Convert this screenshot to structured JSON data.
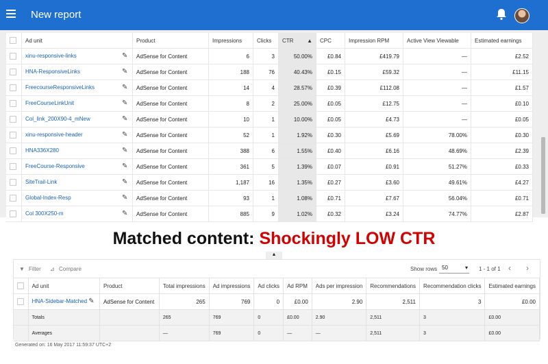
{
  "appbar": {
    "title": "New report"
  },
  "report": {
    "columns": [
      "Ad unit",
      "Product",
      "Impressions",
      "Clicks",
      "CTR",
      "CPC",
      "Impression RPM",
      "Active View Viewable",
      "Estimated earnings"
    ],
    "sort_indicator": "▲",
    "rows": [
      [
        "xinu-responsive-links",
        "AdSense for Content",
        "6",
        "3",
        "50.00%",
        "£0.84",
        "£419.79",
        "—",
        "£2.52"
      ],
      [
        "HNA-ResponsiveLinks",
        "AdSense for Content",
        "188",
        "76",
        "40.43%",
        "£0.15",
        "£59.32",
        "—",
        "£11.15"
      ],
      [
        "FreecourseResponsiveLinks",
        "AdSense for Content",
        "14",
        "4",
        "28.57%",
        "£0.39",
        "£112.08",
        "—",
        "£1.57"
      ],
      [
        "FreeCourseLinkUnit",
        "AdSense for Content",
        "8",
        "2",
        "25.00%",
        "£0.05",
        "£12.75",
        "—",
        "£0.10"
      ],
      [
        "Col_link_200X90-4_mNew",
        "AdSense for Content",
        "10",
        "1",
        "10.00%",
        "£0.05",
        "£4.73",
        "—",
        "£0.05"
      ],
      [
        "xinu-responsive-header",
        "AdSense for Content",
        "52",
        "1",
        "1.92%",
        "£0.30",
        "£5.69",
        "78.00%",
        "£0.30"
      ],
      [
        "HNA336X280",
        "AdSense for Content",
        "388",
        "6",
        "1.55%",
        "£0.40",
        "£6.16",
        "48.69%",
        "£2.39"
      ],
      [
        "FreeCourse-Responsive",
        "AdSense for Content",
        "361",
        "5",
        "1.39%",
        "£0.07",
        "£0.91",
        "51.27%",
        "£0.33"
      ],
      [
        "SiteTrail-Link",
        "AdSense for Content",
        "1,187",
        "16",
        "1.35%",
        "£0.27",
        "£3.60",
        "49.61%",
        "£4.27"
      ],
      [
        "Global-Index-Resp",
        "AdSense for Content",
        "93",
        "1",
        "1.08%",
        "£0.71",
        "£7.67",
        "56.04%",
        "£0.71"
      ],
      [
        "Col 300X250-m",
        "AdSense for Content",
        "885",
        "9",
        "1.02%",
        "£0.32",
        "£3.24",
        "74.77%",
        "£2.87"
      ]
    ]
  },
  "headline": {
    "part1": "Matched content: ",
    "part2": "Shockingly LOW CTR"
  },
  "matched": {
    "toolbar": {
      "filter": "Filter",
      "compare": "Compare",
      "show_rows_label": "Show rows",
      "show_rows_value": "50",
      "range": "1 - 1 of 1"
    },
    "columns": [
      "Ad unit",
      "Product",
      "Total impressions",
      "Ad impressions",
      "Ad clicks",
      "Ad RPM",
      "Ads per impression",
      "Recommendations",
      "Recommendation clicks",
      "Estimated earnings"
    ],
    "row": [
      "HNA-Sidebar-Matched",
      "AdSense for Content",
      "265",
      "769",
      "0",
      "£0.00",
      "2.90",
      "2,511",
      "3",
      "£0.00"
    ],
    "totals": [
      "Totals",
      "",
      "265",
      "769",
      "0",
      "£0.00",
      "2.90",
      "2,511",
      "3",
      "£0.00"
    ],
    "averages": [
      "Averages",
      "",
      "—",
      "769",
      "0",
      "—",
      "—",
      "2,511",
      "3",
      "£0.00"
    ]
  },
  "footer": {
    "generated": "Generated on: 16 May 2017 11:59:37 UTC+2"
  },
  "colors": {
    "appbar": "#1e6fd0",
    "link": "#1a5fb4",
    "headline_red": "#d40000"
  },
  "icons": [
    "menu-icon",
    "bell-icon",
    "avatar",
    "pencil-icon",
    "filter-icon",
    "compare-icon",
    "chevron-left-icon",
    "chevron-right-icon",
    "dropdown-icon"
  ]
}
